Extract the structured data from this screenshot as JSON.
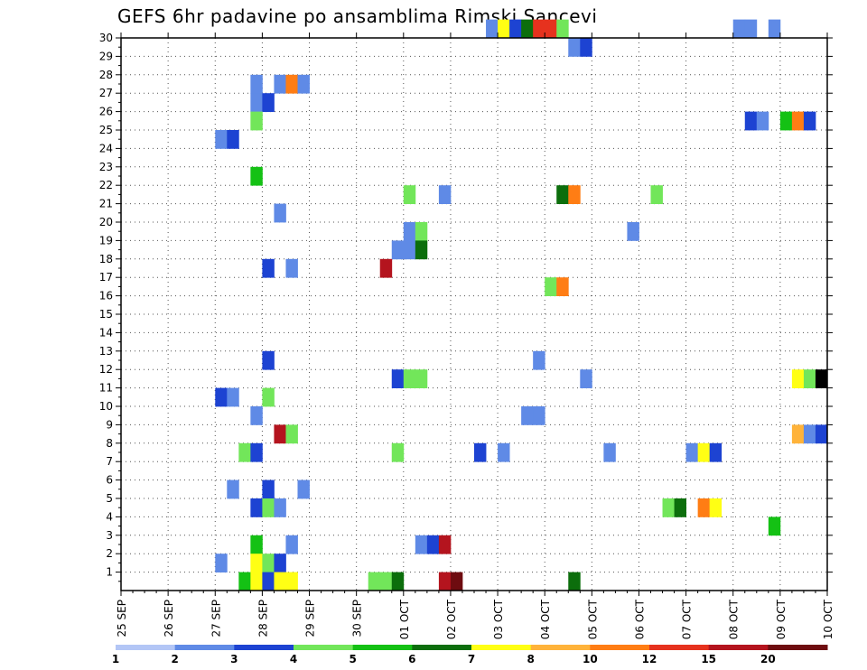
{
  "chart_data": {
    "type": "heatmap",
    "title": "GEFS 6hr padavine po ansamblima Rimski Sancevi",
    "x_tick_labels": [
      "25 SEP",
      "26 SEP",
      "27 SEP",
      "28 SEP",
      "29 SEP",
      "30 SEP",
      "01 OCT",
      "02 OCT",
      "03 OCT",
      "04 OCT",
      "05 OCT",
      "06 OCT",
      "07 OCT",
      "08 OCT",
      "09 OCT",
      "10 OCT"
    ],
    "y_tick_labels": [
      "1",
      "2",
      "3",
      "4",
      "5",
      "6",
      "7",
      "8",
      "9",
      "10",
      "11",
      "12",
      "13",
      "14",
      "15",
      "16",
      "17",
      "18",
      "19",
      "20",
      "21",
      "22",
      "23",
      "24",
      "25",
      "26",
      "27",
      "28",
      "29",
      "30"
    ],
    "xlim": [
      0,
      60
    ],
    "ylim": [
      0,
      30
    ],
    "steps_per_day": 4,
    "grid": true,
    "colorbar": {
      "levels": [
        "1",
        "2",
        "3",
        "4",
        "5",
        "6",
        "7",
        "8",
        "10",
        "12",
        "15",
        "20"
      ],
      "colors": [
        "#b3c6f6",
        "#5f8ae6",
        "#1d43d2",
        "#72e65a",
        "#14c114",
        "#0c6e0c",
        "#ffff14",
        "#ffb33a",
        "#ff7d14",
        "#e6321e",
        "#b4141e",
        "#6e0c10"
      ]
    },
    "cells": [
      [
        31,
        30,
        1
      ],
      [
        32,
        30,
        6
      ],
      [
        33,
        30,
        2
      ],
      [
        34,
        30,
        5
      ],
      [
        35,
        30,
        9
      ],
      [
        36,
        30,
        9
      ],
      [
        37,
        30,
        3
      ],
      [
        52,
        30,
        1
      ],
      [
        53,
        30,
        1
      ],
      [
        55,
        30,
        1
      ],
      [
        38,
        29,
        1
      ],
      [
        39,
        29,
        2
      ],
      [
        11,
        27,
        1
      ],
      [
        13,
        27,
        1
      ],
      [
        14,
        27,
        8
      ],
      [
        15,
        27,
        1
      ],
      [
        11,
        26,
        1
      ],
      [
        12,
        26,
        2
      ],
      [
        11,
        25,
        3
      ],
      [
        53,
        25,
        2
      ],
      [
        54,
        25,
        1
      ],
      [
        56,
        25,
        4
      ],
      [
        57,
        25,
        8
      ],
      [
        58,
        25,
        2
      ],
      [
        8,
        24,
        1
      ],
      [
        9,
        24,
        2
      ],
      [
        11,
        22,
        4
      ],
      [
        24,
        21,
        3
      ],
      [
        27,
        21,
        1
      ],
      [
        37,
        21,
        5
      ],
      [
        38,
        21,
        8
      ],
      [
        45,
        21,
        3
      ],
      [
        13,
        20,
        1
      ],
      [
        24,
        19,
        1
      ],
      [
        25,
        19,
        3
      ],
      [
        43,
        19,
        1
      ],
      [
        23,
        18,
        1
      ],
      [
        24,
        18,
        1
      ],
      [
        25,
        18,
        5
      ],
      [
        12,
        17,
        2
      ],
      [
        14,
        17,
        1
      ],
      [
        22,
        17,
        10
      ],
      [
        36,
        16,
        3
      ],
      [
        37,
        16,
        8
      ],
      [
        12,
        12,
        2
      ],
      [
        35,
        12,
        1
      ],
      [
        23,
        11,
        2
      ],
      [
        24,
        11,
        3
      ],
      [
        25,
        11,
        3
      ],
      [
        39,
        11,
        1
      ],
      [
        57,
        11,
        6
      ],
      [
        58,
        11,
        3
      ],
      [
        59,
        11,
        12
      ],
      [
        8,
        10,
        2
      ],
      [
        9,
        10,
        1
      ],
      [
        12,
        10,
        3
      ],
      [
        11,
        9,
        1
      ],
      [
        34,
        9,
        1
      ],
      [
        35,
        9,
        1
      ],
      [
        13,
        8,
        10
      ],
      [
        14,
        8,
        3
      ],
      [
        57,
        8,
        7
      ],
      [
        58,
        8,
        1
      ],
      [
        59,
        8,
        2
      ],
      [
        10,
        7,
        3
      ],
      [
        11,
        7,
        2
      ],
      [
        23,
        7,
        3
      ],
      [
        30,
        7,
        2
      ],
      [
        32,
        7,
        1
      ],
      [
        41,
        7,
        1
      ],
      [
        48,
        7,
        1
      ],
      [
        49,
        7,
        6
      ],
      [
        50,
        7,
        2
      ],
      [
        9,
        5,
        1
      ],
      [
        12,
        5,
        2
      ],
      [
        15,
        5,
        1
      ],
      [
        11,
        4,
        2
      ],
      [
        12,
        4,
        3
      ],
      [
        13,
        4,
        1
      ],
      [
        46,
        4,
        3
      ],
      [
        47,
        4,
        5
      ],
      [
        49,
        4,
        8
      ],
      [
        50,
        4,
        6
      ],
      [
        55,
        3,
        4
      ],
      [
        11,
        2,
        4
      ],
      [
        14,
        2,
        1
      ],
      [
        25,
        2,
        1
      ],
      [
        26,
        2,
        2
      ],
      [
        27,
        2,
        10
      ],
      [
        8,
        1,
        1
      ],
      [
        11,
        1,
        6
      ],
      [
        12,
        1,
        3
      ],
      [
        13,
        1,
        2
      ],
      [
        10,
        0,
        4
      ],
      [
        11,
        0,
        6
      ],
      [
        12,
        0,
        2
      ],
      [
        13,
        0,
        6
      ],
      [
        14,
        0,
        6
      ],
      [
        21,
        0,
        3
      ],
      [
        22,
        0,
        3
      ],
      [
        23,
        0,
        5
      ],
      [
        27,
        0,
        10
      ],
      [
        28,
        0,
        11
      ],
      [
        38,
        0,
        5
      ]
    ]
  }
}
